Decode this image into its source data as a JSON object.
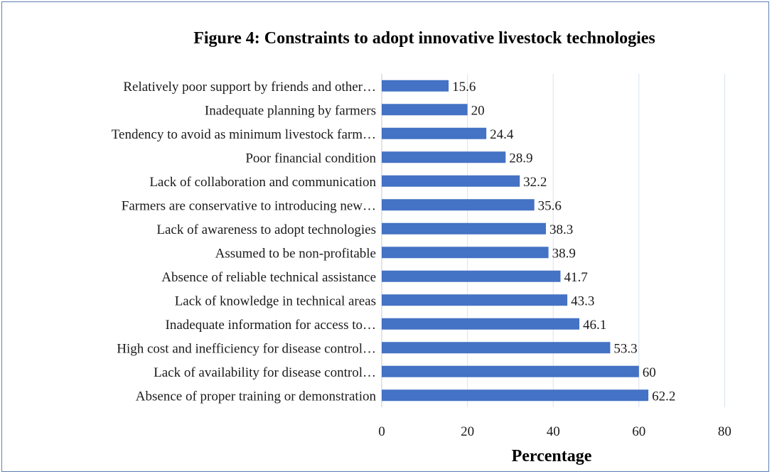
{
  "chart_data": {
    "type": "bar",
    "orientation": "horizontal",
    "title": "Figure 4: Constraints to adopt innovative livestock technologies",
    "xlabel": "Percentage",
    "ylabel": "",
    "xlim": [
      0,
      80
    ],
    "xticks": [
      "0",
      "20",
      "40",
      "60",
      "80"
    ],
    "grid": true,
    "bar_color": "#4472c4",
    "categories": [
      "Relatively poor support by friends and other…",
      "Inadequate planning by farmers",
      "Tendency to avoid as minimum livestock farm…",
      "Poor financial condition",
      "Lack of collaboration and communication",
      "Farmers are conservative to introducing new…",
      "Lack of awareness to adopt technologies",
      "Assumed to be non-profitable",
      "Absence of reliable technical assistance",
      "Lack of knowledge in technical areas",
      "Inadequate information for access to…",
      "High cost and inefficiency for disease control…",
      "Lack of availability for disease control…",
      "Absence of proper training or demonstration"
    ],
    "values": [
      15.6,
      20,
      24.4,
      28.9,
      32.2,
      35.6,
      38.3,
      38.9,
      41.7,
      43.3,
      46.1,
      53.3,
      60,
      62.2
    ],
    "labels": [
      "15.6",
      "20",
      "24.4",
      "28.9",
      "32.2",
      "35.6",
      "38.3",
      "38.9",
      "41.7",
      "43.3",
      "46.1",
      "53.3",
      "60",
      "62.2"
    ]
  }
}
